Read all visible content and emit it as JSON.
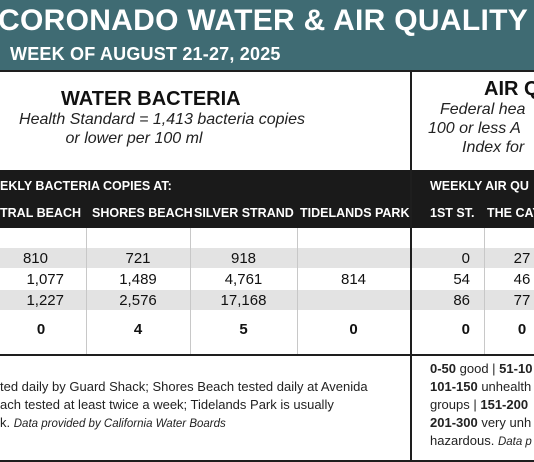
{
  "header": {
    "title": "CORONADO WATER & AIR QUALITY R",
    "subtitle": "WEEK OF AUGUST 21-27, 2025"
  },
  "water": {
    "heading": "WATER BACTERIA",
    "desc_line1": "Health Standard  = 1,413 bacteria copies",
    "desc_line2": "or lower per 100 ml",
    "bar_title": "EKLY BACTERIA COPIES AT:",
    "columns": [
      "TRAL BEACH",
      "SHORES BEACH",
      "SILVER STRAND",
      "TIDELANDS PARK"
    ],
    "rows": [
      [
        "810",
        "721",
        "918",
        ""
      ],
      [
        "1,077",
        "1,489",
        "4,761",
        "814"
      ],
      [
        "1,227",
        "2,576",
        "17,168",
        ""
      ],
      [
        "0",
        "4",
        "5",
        "0"
      ]
    ],
    "note_line1": "ted daily by Guard Shack; Shores Beach tested daily at Avenida",
    "note_line2": "ach tested at least twice a week; Tidelands Park is usually",
    "note_line3_a": "k.",
    "note_line3_src": "Data provided by California Water Boards"
  },
  "air": {
    "heading": "AIR Q",
    "desc_line1": "Federal hea",
    "desc_line2": "100 or less A",
    "desc_line3": "Index for",
    "bar_title": "WEEKLY AIR QU",
    "columns": [
      "1ST ST.",
      "THE CAY"
    ],
    "rows": [
      [
        "0",
        "27"
      ],
      [
        "54",
        "46"
      ],
      [
        "86",
        "77"
      ],
      [
        "0",
        "0"
      ]
    ],
    "legend_l1_a": "0-50",
    "legend_l1_b": " good | ",
    "legend_l1_c": "51-10",
    "legend_l2_a": "101-150",
    "legend_l2_b": " unhealth",
    "legend_l3_a": "groups | ",
    "legend_l3_b": "151-200",
    "legend_l4_a": "201-300",
    "legend_l4_b": " very unh",
    "legend_l5_a": "hazardous. ",
    "legend_l5_src": "Data p"
  }
}
